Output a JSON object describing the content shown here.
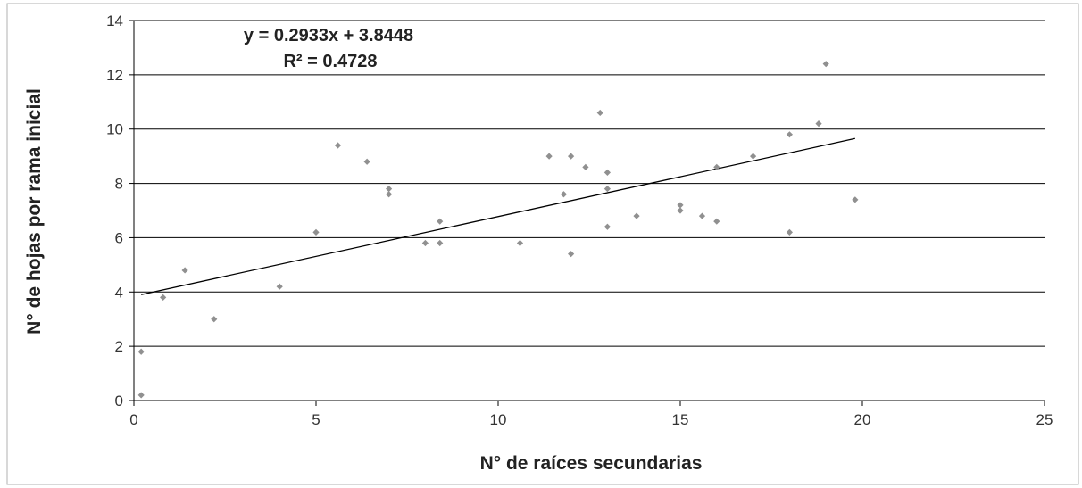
{
  "chart_data": {
    "type": "scatter",
    "xlabel": "N° de raíces secundarias",
    "ylabel": "N° de hojas por  rama inicial",
    "xlim": [
      0,
      25
    ],
    "ylim": [
      0,
      14
    ],
    "x_ticks": [
      0,
      5,
      10,
      15,
      20,
      25
    ],
    "y_ticks": [
      0,
      2,
      4,
      6,
      8,
      10,
      12,
      14
    ],
    "grid": "horizontal",
    "marker_color": "#909090",
    "trendline": {
      "slope": 0.2933,
      "intercept": 3.8448,
      "x_range": [
        0.2,
        19.8
      ],
      "equation": "y = 0.2933x + 3.8448",
      "r_squared": "R² = 0.4728",
      "color": "#000000"
    },
    "series": [
      {
        "points": [
          [
            0.2,
            1.8
          ],
          [
            0.2,
            0.2
          ],
          [
            0.8,
            3.8
          ],
          [
            1.4,
            4.8
          ],
          [
            2.2,
            3.0
          ],
          [
            4.0,
            4.2
          ],
          [
            5.0,
            6.2
          ],
          [
            5.6,
            9.4
          ],
          [
            6.4,
            8.8
          ],
          [
            7.0,
            7.8
          ],
          [
            7.0,
            7.6
          ],
          [
            8.0,
            5.8
          ],
          [
            8.4,
            5.8
          ],
          [
            8.4,
            6.6
          ],
          [
            10.6,
            5.8
          ],
          [
            11.4,
            9.0
          ],
          [
            11.8,
            7.6
          ],
          [
            12.0,
            9.0
          ],
          [
            12.0,
            5.4
          ],
          [
            12.4,
            8.6
          ],
          [
            12.8,
            10.6
          ],
          [
            13.0,
            8.4
          ],
          [
            13.0,
            7.8
          ],
          [
            13.0,
            6.4
          ],
          [
            13.8,
            6.8
          ],
          [
            15.0,
            7.2
          ],
          [
            15.0,
            7.0
          ],
          [
            15.6,
            6.8
          ],
          [
            16.0,
            8.6
          ],
          [
            16.0,
            6.6
          ],
          [
            17.0,
            9.0
          ],
          [
            18.0,
            9.8
          ],
          [
            18.0,
            6.2
          ],
          [
            18.8,
            10.2
          ],
          [
            19.0,
            12.4
          ],
          [
            19.8,
            7.4
          ]
        ]
      }
    ]
  }
}
